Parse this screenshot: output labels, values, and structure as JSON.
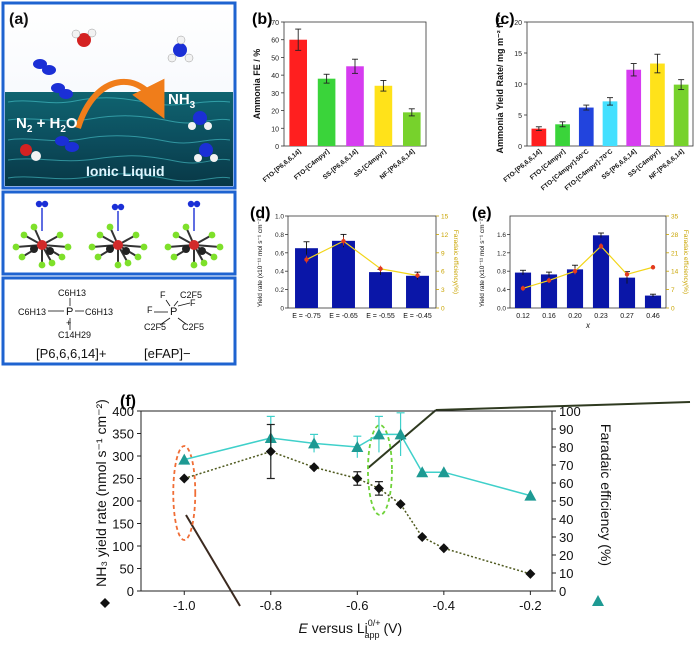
{
  "panels": {
    "a": {
      "label": "(a)",
      "scene_labels": [
        "N",
        "2",
        " + H",
        "2",
        "O",
        "NH",
        "3",
        "Ionic Liquid"
      ],
      "cation_formula": {
        "top": "C6H13",
        "left": "C6H13",
        "right": "C6H13",
        "bottom": "C14H29",
        "center": "P",
        "charge": "+",
        "name": "[P6,6,6,14]+"
      },
      "anion_formula": {
        "center": "P",
        "ligands": [
          "F",
          "F",
          "F",
          "C2F5",
          "C2F5",
          "C2F5"
        ],
        "name": "[eFAP]−"
      }
    }
  },
  "chart_data": [
    {
      "id": "b",
      "label": "(b)",
      "type": "bar",
      "ylabel": "Ammonia FE / %",
      "ylim": [
        0,
        70
      ],
      "yticks": [
        0,
        10,
        20,
        30,
        40,
        50,
        60,
        70
      ],
      "categories": [
        "FTO-[P6,6,6,14]",
        "FTO-[C4mpyr]",
        "SS-[P6,6,6,14]",
        "SS-[C4mpyr]",
        "NF-[P6,6,6,14]"
      ],
      "values": [
        60,
        38,
        45,
        34,
        19
      ],
      "errors": [
        6,
        2.5,
        4,
        3,
        2
      ],
      "colors": [
        "#ff1f1f",
        "#3ad43a",
        "#d63cf0",
        "#ffe21a",
        "#77d22c"
      ]
    },
    {
      "id": "c",
      "label": "(c)",
      "type": "bar",
      "ylabel": "Ammonia Yield Rate/ mg m⁻² h⁻¹",
      "ylim": [
        0,
        20
      ],
      "yticks": [
        0,
        5,
        10,
        15,
        20
      ],
      "categories": [
        "FTO-[P6,6,6,14]",
        "FTO-[C4mpyr]",
        "FTO-[C4mpyr]-50°C",
        "FTO-[C4mpyr]-70°C",
        "SS-[P6,6,6,14]",
        "SS-[C4mpyr]",
        "NF-[P6,6,6,14]"
      ],
      "values": [
        2.8,
        3.5,
        6.2,
        7.2,
        12.3,
        13.3,
        9.9
      ],
      "errors": [
        0.3,
        0.4,
        0.4,
        0.6,
        1.0,
        1.5,
        0.8
      ],
      "colors": [
        "#ff1f1f",
        "#3ad43a",
        "#2244dd",
        "#44e0ff",
        "#d63cf0",
        "#ffe21a",
        "#77d22c"
      ]
    },
    {
      "id": "d",
      "label": "(d)",
      "type": "bar",
      "ylabel": "Yield rate (x10⁻¹¹ mol s⁻¹ cm⁻²)",
      "y2label": "Faradaic efficiency(%)",
      "ylim": [
        0,
        1.0
      ],
      "yticks": [
        "0",
        "0.2",
        "0.4",
        "0.6",
        "0.8",
        "1.0"
      ],
      "y2lim": [
        0,
        15
      ],
      "y2ticks": [
        "0",
        "3",
        "6",
        "9",
        "12",
        "15"
      ],
      "categories": [
        "E = -0.75",
        "E = -0.65",
        "E = -0.55",
        "E = -0.45"
      ],
      "values": [
        0.65,
        0.73,
        0.39,
        0.35
      ],
      "errors": [
        0.07,
        0.07,
        0.03,
        0.04
      ],
      "fe_values": [
        7.9,
        10.9,
        6.4,
        5.3
      ],
      "fe_errors": [
        0.6,
        0.7,
        0.5,
        0.4
      ],
      "bar_color": "#0a16a8",
      "line_color": "#f2d518",
      "marker_color": "#e23a1e"
    },
    {
      "id": "e",
      "label": "(e)",
      "type": "bar",
      "ylabel": "Yield rate (x10⁻¹¹ mol s⁻¹ cm⁻²)",
      "y2label": "Faradaic efficiency(%)",
      "xlabel": "x",
      "ylim": [
        0,
        2.0
      ],
      "yticks": [
        "0.0",
        "0.4",
        "0.8",
        "1.2",
        "1.6"
      ],
      "y2lim": [
        0,
        35
      ],
      "y2ticks": [
        "0",
        "7",
        "14",
        "21",
        "28",
        "35"
      ],
      "categories": [
        "0.12",
        "0.16",
        "0.20",
        "0.23",
        "0.27",
        "0.46"
      ],
      "values": [
        0.77,
        0.73,
        0.84,
        1.58,
        0.66,
        0.27
      ],
      "errors": [
        0.05,
        0.05,
        0.09,
        0.05,
        0.13,
        0.03
      ],
      "fe_values": [
        7.5,
        10.5,
        14.0,
        23.5,
        12.8,
        15.5
      ],
      "fe_errors": [
        1.0,
        1.0,
        1.2,
        1.2,
        1.0,
        0.8
      ],
      "bar_color": "#0a16a8",
      "line_color": "#f2d518",
      "marker_color": "#e23a1e"
    },
    {
      "id": "f",
      "label": "(f)",
      "type": "scatter",
      "xlabel": "E versus Li",
      "xlabel_sup": "0/+",
      "xlabel_sub": "app",
      "xlabel_suffix": " (V)",
      "ylabel": "NH₃ yield rate (nmol s⁻¹ cm⁻²)",
      "y2label": "Faradaic efficiency (%)",
      "xlim": [
        -1.1,
        -0.15
      ],
      "xticks": [
        "-1.0",
        "-0.8",
        "-0.6",
        "-0.4",
        "-0.2"
      ],
      "ylim": [
        0,
        400
      ],
      "yticks": [
        "0",
        "50",
        "100",
        "150",
        "200",
        "250",
        "300",
        "350",
        "400"
      ],
      "y2lim": [
        0,
        100
      ],
      "y2ticks": [
        "0",
        "10",
        "20",
        "30",
        "40",
        "50",
        "60",
        "70",
        "80",
        "90",
        "100"
      ],
      "series": [
        {
          "axis": "left",
          "marker": "diamond",
          "color": "#111111",
          "line_color": "#4f5a1f",
          "x": [
            -1.0,
            -0.8,
            -0.7,
            -0.6,
            -0.55,
            -0.5,
            -0.45,
            -0.4,
            -0.2
          ],
          "y": [
            250,
            310,
            275,
            250,
            228,
            193,
            120,
            95,
            38
          ],
          "err": [
            0,
            60,
            0,
            15,
            15,
            0,
            0,
            0,
            0
          ]
        },
        {
          "axis": "right",
          "marker": "triangle",
          "color": "#1e9a93",
          "line_color": "#3fd0ca",
          "x": [
            -1.0,
            -0.8,
            -0.7,
            -0.6,
            -0.55,
            -0.5,
            -0.45,
            -0.4,
            -0.2
          ],
          "y": [
            73,
            85,
            82,
            80,
            87,
            87,
            66,
            66,
            53
          ],
          "err": [
            0,
            12,
            5,
            6,
            10,
            12,
            0,
            0,
            0
          ]
        }
      ]
    }
  ]
}
